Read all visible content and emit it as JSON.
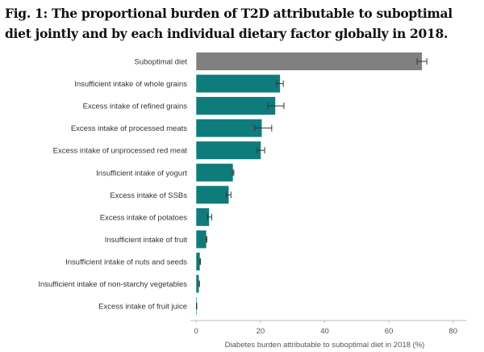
{
  "chart_data": {
    "type": "bar",
    "orientation": "horizontal",
    "title": "Fig. 1: The proportional burden of T2D attributable to suboptimal diet jointly and by each individual dietary factor globally in 2018.",
    "xlabel": "Diabetes burden attributable to suboptimal diet in 2018 (%)",
    "ylabel": "",
    "xlim": [
      0,
      80
    ],
    "xticks": [
      "0",
      "20",
      "40",
      "60",
      "80"
    ],
    "categories": [
      "Suboptimal diet",
      "Insufficient intake of whole grains",
      "Excess intake of refined grains",
      "Excess intake of processed meats",
      "Excess intake of unprocessed red meat",
      "Insufficient intake of yogurt",
      "Excess intake of SSBs",
      "Excess intake of potatoes",
      "Insufficient intake of fruit",
      "Insufficient intake of nuts and seeds",
      "Insufficient intake of non-starchy vegetables",
      "Excess intake of fruit juice"
    ],
    "values": [
      70.3,
      26.1,
      24.6,
      20.4,
      20.1,
      11.4,
      10.1,
      4.0,
      3.1,
      1.1,
      0.8,
      0.1
    ],
    "error_low": [
      68.8,
      25.0,
      22.3,
      18.2,
      19.0,
      11.3,
      9.4,
      3.5,
      3.0,
      1.0,
      0.7,
      0.05
    ],
    "error_high": [
      71.8,
      27.1,
      27.3,
      23.5,
      21.3,
      11.7,
      10.8,
      4.8,
      3.3,
      1.3,
      1.0,
      0.15
    ],
    "colors": {
      "total": "#808080",
      "factor": "#0e7c7b",
      "error": "#333333",
      "axis": "#bbbbbb"
    }
  }
}
